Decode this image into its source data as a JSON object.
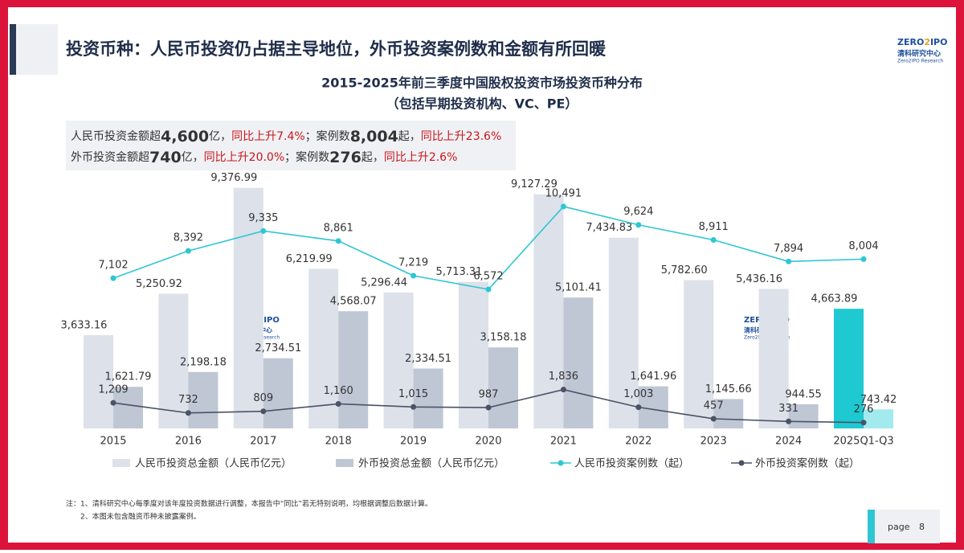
{
  "header": {
    "title": "投资币种：人民币投资仍占据主导地位，外币投资案例数和金额有所回暖"
  },
  "logo": {
    "brand_left": "ZERO",
    "brand_num": "2",
    "brand_right": "IPO",
    "name": "清科研究中心",
    "sub": "Zero2IPO Research"
  },
  "summary": {
    "lines": [
      [
        {
          "text": "人民币投资金额超",
          "style": "normal"
        },
        {
          "text": "4,600",
          "style": "strong"
        },
        {
          "text": "亿，",
          "style": "normal"
        },
        {
          "text": "同比上升7.4%",
          "style": "red"
        },
        {
          "text": "；案例数",
          "style": "normal"
        },
        {
          "text": "8,004",
          "style": "strong"
        },
        {
          "text": "起，",
          "style": "normal"
        },
        {
          "text": "同比上升23.6%",
          "style": "red"
        }
      ],
      [
        {
          "text": "外币投资金额超",
          "style": "normal"
        },
        {
          "text": "740",
          "style": "strong"
        },
        {
          "text": "亿，",
          "style": "normal"
        },
        {
          "text": "同比上升20.0%",
          "style": "red"
        },
        {
          "text": "；案例数",
          "style": "normal"
        },
        {
          "text": "276",
          "style": "strong"
        },
        {
          "text": "起，",
          "style": "normal"
        },
        {
          "text": "同比上升2.6%",
          "style": "red"
        }
      ]
    ]
  },
  "chart_data": {
    "type": "bar",
    "title": "2015-2025年前三季度中国股权投资市场投资币种分布",
    "subtitle": "（包括早期投资机构、VC、PE）",
    "categories": [
      "2015",
      "2016",
      "2017",
      "2018",
      "2019",
      "2020",
      "2021",
      "2022",
      "2023",
      "2024",
      "2025Q1-Q3"
    ],
    "ylim": [
      0,
      9400
    ],
    "y2lim": [
      0,
      11400
    ],
    "series": [
      {
        "name": "人民币投资总金额（人民币亿元）",
        "type": "bar",
        "color": "#dde1e9",
        "last_color": "#1fc9d2",
        "values": [
          3633.16,
          5250.92,
          9376.99,
          6219.99,
          5296.44,
          5713.31,
          9127.29,
          7434.83,
          5782.6,
          5436.16,
          4663.89
        ],
        "value_labels": [
          "3,633.16",
          "5,250.92",
          "9,376.99",
          "6,219.99",
          "5,296.44",
          "5,713.31",
          "9,127.29",
          "7,434.83",
          "5,782.60",
          "5,436.16",
          "4,663.89"
        ]
      },
      {
        "name": "外币投资总金额（人民币亿元）",
        "type": "bar",
        "color": "#bfc7d5",
        "last_color": "#a3eaee",
        "values": [
          1621.79,
          2198.18,
          2734.51,
          4568.07,
          2334.51,
          3158.18,
          5101.41,
          1641.96,
          1145.66,
          944.55,
          743.42
        ],
        "value_labels": [
          "1,621.79",
          "2,198.18",
          "2,734.51",
          "4,568.07",
          "2,334.51",
          "3,158.18",
          "5,101.41",
          "1,641.96",
          "1,145.66",
          "944.55",
          "743.42"
        ]
      },
      {
        "name": "人民币投资案例数（起）",
        "type": "line",
        "axis": "y2",
        "color": "#2ec6d4",
        "values": [
          7102,
          8392,
          9335,
          8861,
          7219,
          6572,
          10491,
          9624,
          8911,
          7894,
          8004
        ],
        "value_labels": [
          "7,102",
          "8,392",
          "9,335",
          "8,861",
          "7,219",
          "6,572",
          "10,491",
          "9,624",
          "8,911",
          "7,894",
          "8,004"
        ]
      },
      {
        "name": "外币投资案例数（起）",
        "type": "line",
        "axis": "y2",
        "color": "#4a5366",
        "values": [
          1209,
          732,
          809,
          1160,
          1015,
          987,
          1836,
          1003,
          457,
          331,
          276
        ],
        "value_labels": [
          "1,209",
          "732",
          "809",
          "1,160",
          "1,015",
          "987",
          "1,836",
          "1,003",
          "457",
          "331",
          "276"
        ]
      }
    ]
  },
  "notes": [
    "注：1、清科研究中心每季度对该年度投资数据进行调整，本报告中“同比”若无特别说明，均根据调整后数据计算。",
    "2、本图未包含融资币种未披露案例。"
  ],
  "footer": {
    "label": "page",
    "number": "8"
  }
}
